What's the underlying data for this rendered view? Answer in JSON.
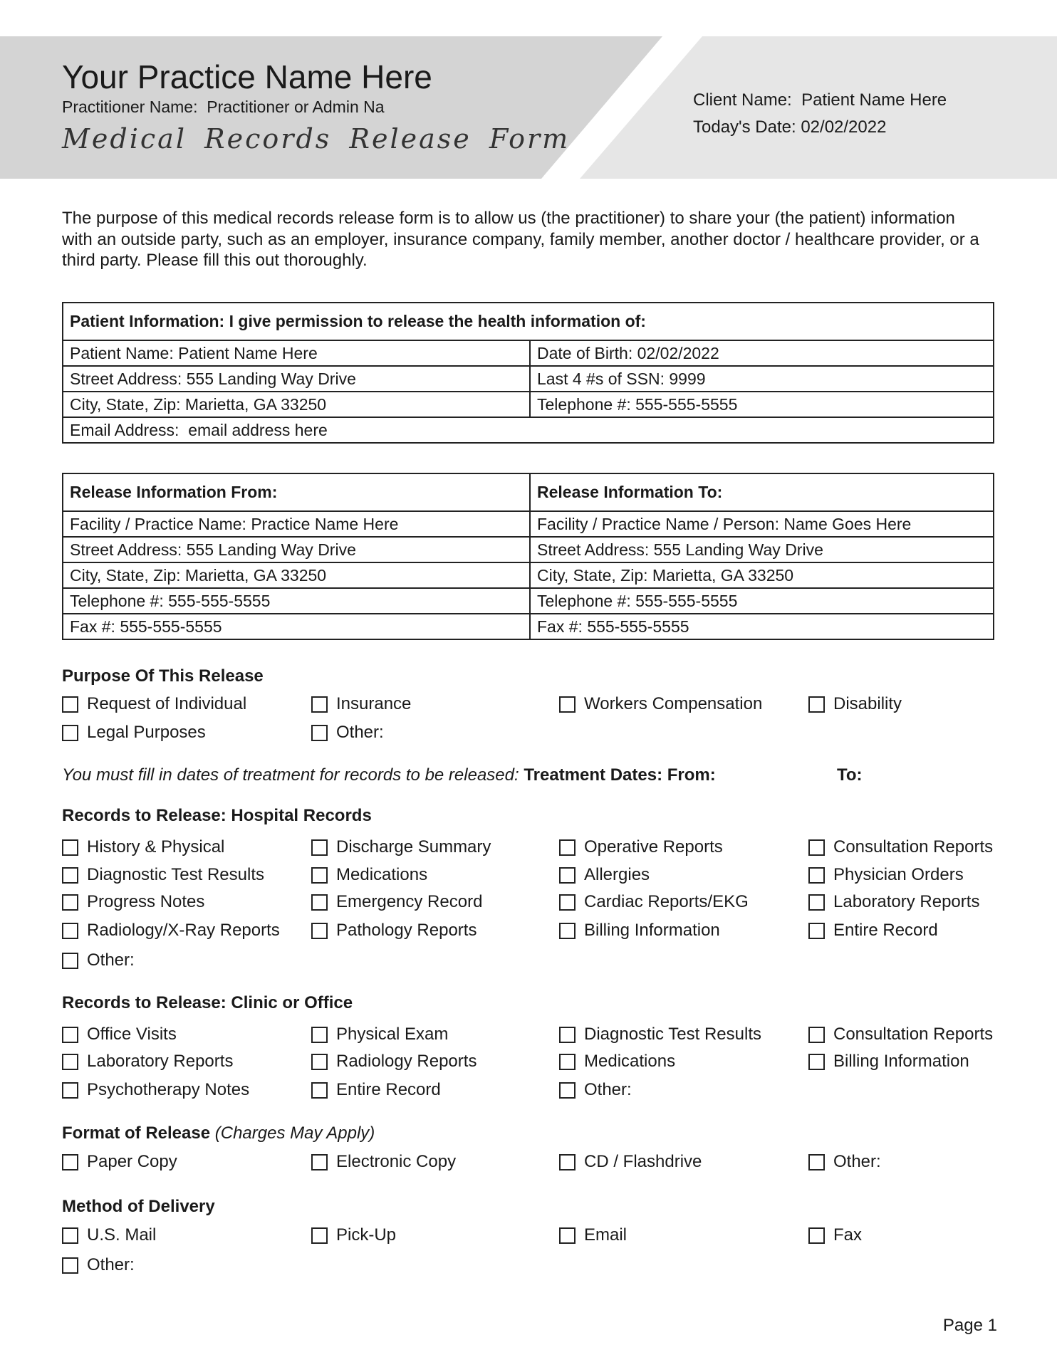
{
  "header": {
    "practice_name": "Your Practice Name Here",
    "practitioner_label": "Practitioner Name:",
    "practitioner_value": "Practitioner or Admin Na",
    "form_title": "Medical Records Release Form",
    "client_label": "Client Name:",
    "client_value": "Patient Name Here",
    "date_label": "Today's Date:",
    "date_value": "02/02/2022",
    "colors": {
      "left_panel": "#d4d4d4",
      "right_panel": "#e6e6e6"
    }
  },
  "intro": [
    "The purpose of this medical records release form is to allow us (the practitioner) to share your (the patient) information",
    "with an outside party, such as an employer, insurance company, family member, another doctor / healthcare provider, or a",
    "third party. Please fill this out thoroughly."
  ],
  "patient_table": {
    "heading": "Patient Information: I give permission to release the health information of:",
    "rows": [
      [
        {
          "label": "Patient Name:",
          "value": "Patient Name Here"
        },
        {
          "label": "Date of Birth:",
          "value": "02/02/2022"
        }
      ],
      [
        {
          "label": "Street Address:",
          "value": "555 Landing Way Drive"
        },
        {
          "label": "Last 4 #s of SSN:",
          "value": "9999"
        }
      ],
      [
        {
          "label": "City, State, Zip:",
          "value": "Marietta, GA 33250"
        },
        {
          "label": "Telephone #:",
          "value": "555-555-5555"
        }
      ]
    ],
    "email": {
      "label": "Email Address:",
      "value": "email address here"
    }
  },
  "release_table": {
    "from_heading": "Release Information From:",
    "to_heading": "Release Information To:",
    "rows": [
      [
        {
          "label": "Facility / Practice Name:",
          "value": "Practice Name Here"
        },
        {
          "label": "Facility / Practice Name / Person:",
          "value": "Name Goes Here"
        }
      ],
      [
        {
          "label": "Street Address:",
          "value": "555 Landing Way Drive"
        },
        {
          "label": "Street Address:",
          "value": "555 Landing Way Drive"
        }
      ],
      [
        {
          "label": "City, State, Zip:",
          "value": "Marietta, GA 33250"
        },
        {
          "label": "City, State, Zip:",
          "value": "Marietta, GA 33250"
        }
      ],
      [
        {
          "label": "Telephone #:",
          "value": "555-555-5555"
        },
        {
          "label": "Telephone #:",
          "value": "555-555-5555"
        }
      ],
      [
        {
          "label": "Fax #:",
          "value": "555-555-5555"
        },
        {
          "label": "Fax #:",
          "value": "555-555-5555"
        }
      ]
    ]
  },
  "purpose": {
    "heading": "Purpose Of This Release",
    "items": [
      "Request of Individual",
      "Insurance",
      "Workers Compensation",
      "Disability",
      "Legal Purposes",
      "Other:"
    ]
  },
  "treatment": {
    "note": "You must fill in dates of treatment for records to be released:",
    "from_label": "Treatment Dates: From:",
    "to_label": "To:"
  },
  "hospital": {
    "heading": "Records to Release: Hospital Records",
    "items": [
      "History & Physical",
      "Discharge Summary",
      "Operative Reports",
      "Consultation Reports",
      "Diagnostic Test Results",
      "Medications",
      "Allergies",
      "Physician Orders",
      "Progress Notes",
      "Emergency Record",
      "Cardiac Reports/EKG",
      "Laboratory Reports",
      "Radiology/X-Ray Reports",
      "Pathology Reports",
      "Billing Information",
      "Entire Record",
      "Other:"
    ]
  },
  "clinic": {
    "heading": "Records to Release: Clinic or Office",
    "items": [
      "Office Visits",
      "Physical Exam",
      "Diagnostic Test Results",
      "Consultation Reports",
      "Laboratory Reports",
      "Radiology Reports",
      "Medications",
      "Billing Information",
      "Psychotherapy Notes",
      "Entire Record",
      "Other:"
    ]
  },
  "format": {
    "heading": "Format of Release",
    "heading_note": "(Charges May Apply)",
    "items": [
      "Paper Copy",
      "Electronic Copy",
      "CD / Flashdrive",
      "Other:"
    ]
  },
  "delivery": {
    "heading": "Method of Delivery",
    "items": [
      "U.S. Mail",
      "Pick-Up",
      "Email",
      "Fax",
      "Other:"
    ]
  },
  "footer": {
    "page": "Page 1"
  }
}
